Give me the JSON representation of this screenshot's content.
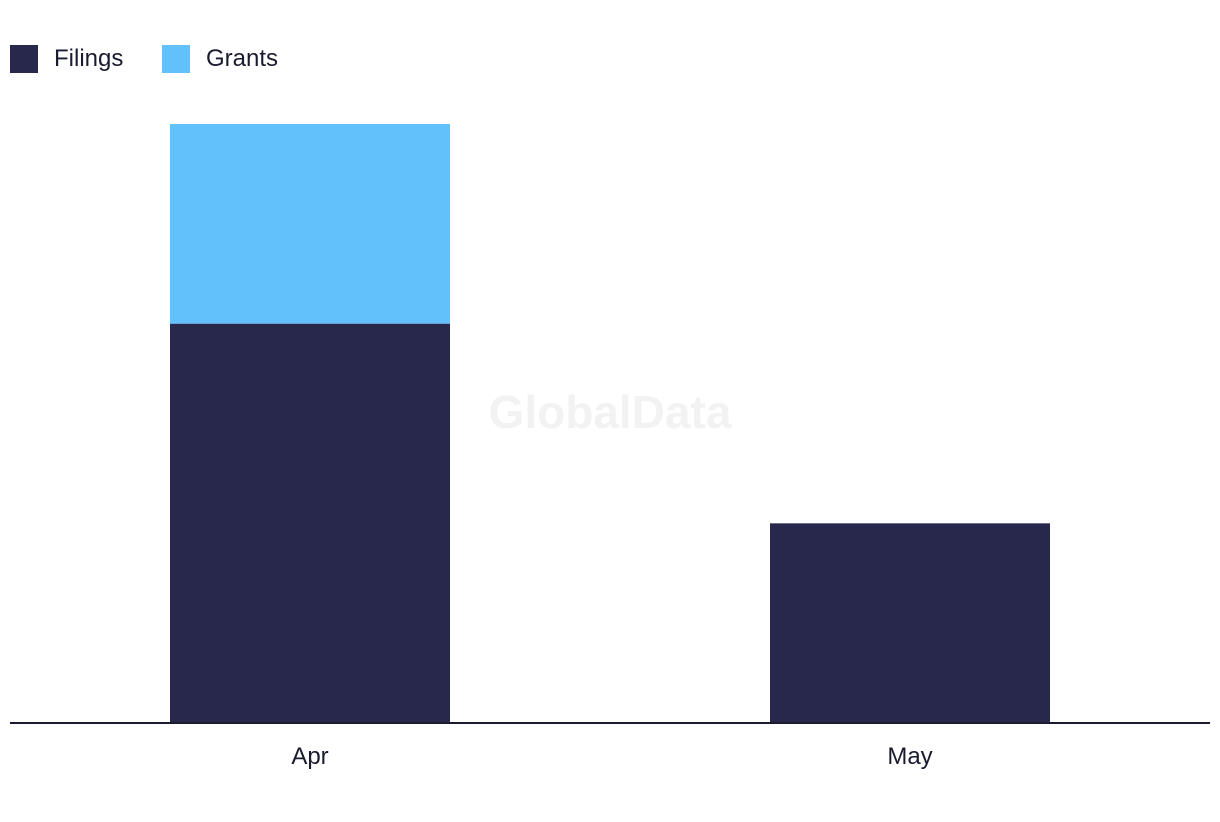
{
  "watermark": "GlobalData",
  "chart_data": {
    "type": "bar",
    "stacked": true,
    "categories": [
      "Apr",
      "May"
    ],
    "series": [
      {
        "name": "Filings",
        "values": [
          2,
          1
        ],
        "color": "#27284b"
      },
      {
        "name": "Grants",
        "values": [
          1,
          0
        ],
        "color": "#62c1fa"
      }
    ],
    "ylim": [
      0,
      3
    ],
    "grid": false,
    "legend": "top-left",
    "title": "",
    "xlabel": "",
    "ylabel": ""
  }
}
